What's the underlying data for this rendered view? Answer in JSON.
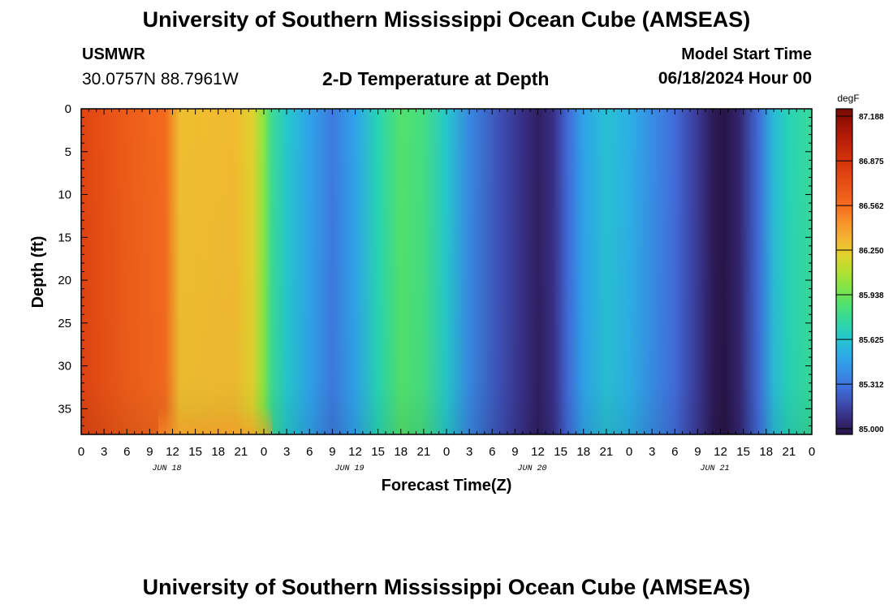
{
  "header": {
    "title": "University of Southern Mississippi Ocean Cube (AMSEAS)",
    "station_name": "USMWR",
    "station_coords": "30.0757N  88.7961W",
    "plot_title": "2-D Temperature at Depth",
    "model_start_label": "Model Start Time",
    "model_start_value": "06/18/2024 Hour 00"
  },
  "footer": {
    "title": "University of Southern Mississippi Ocean Cube (AMSEAS)"
  },
  "chart_data": {
    "type": "heatmap",
    "xlabel": "Forecast Time(Z)",
    "ylabel": "Depth (ft)",
    "x_hours_range": [
      0,
      96
    ],
    "ylim": [
      0,
      38
    ],
    "y_ticks": [
      "0",
      "5",
      "10",
      "15",
      "20",
      "25",
      "30",
      "35"
    ],
    "x_tick_labels": [
      "0",
      "3",
      "6",
      "9",
      "12",
      "15",
      "18",
      "21",
      "0",
      "3",
      "6",
      "9",
      "12",
      "15",
      "18",
      "21",
      "0",
      "3",
      "6",
      "9",
      "12",
      "15",
      "18",
      "21",
      "0",
      "3",
      "6",
      "9",
      "12",
      "15",
      "18",
      "21",
      "0"
    ],
    "date_labels": [
      "JUN 18",
      "JUN 19",
      "JUN 20",
      "JUN 21"
    ],
    "colorbar": {
      "unit": "degF",
      "min": 85.0,
      "max": 87.188,
      "ticks": [
        "87.188",
        "86.875",
        "86.562",
        "86.250",
        "85.938",
        "85.625",
        "85.312",
        "85.000"
      ]
    },
    "surface_temperature_by_hour": [
      {
        "hour": 0,
        "value": 86.75
      },
      {
        "hour": 6,
        "value": 86.62
      },
      {
        "hour": 11,
        "value": 86.55
      },
      {
        "hour": 13,
        "value": 86.28
      },
      {
        "hour": 20,
        "value": 86.3
      },
      {
        "hour": 22.5,
        "value": 86.2
      },
      {
        "hour": 24,
        "value": 86.0
      },
      {
        "hour": 25,
        "value": 85.8
      },
      {
        "hour": 27,
        "value": 85.65
      },
      {
        "hour": 30,
        "value": 85.5
      },
      {
        "hour": 33,
        "value": 85.35
      },
      {
        "hour": 36,
        "value": 85.5
      },
      {
        "hour": 39,
        "value": 85.72
      },
      {
        "hour": 42,
        "value": 85.88
      },
      {
        "hour": 45,
        "value": 85.83
      },
      {
        "hour": 48,
        "value": 85.65
      },
      {
        "hour": 51,
        "value": 85.4
      },
      {
        "hour": 55,
        "value": 85.22
      },
      {
        "hour": 58,
        "value": 85.12
      },
      {
        "hour": 60,
        "value": 85.05
      },
      {
        "hour": 62,
        "value": 85.12
      },
      {
        "hour": 64,
        "value": 85.3
      },
      {
        "hour": 66,
        "value": 85.5
      },
      {
        "hour": 69,
        "value": 85.62
      },
      {
        "hour": 72,
        "value": 85.55
      },
      {
        "hour": 75,
        "value": 85.42
      },
      {
        "hour": 78,
        "value": 85.3
      },
      {
        "hour": 81,
        "value": 85.15
      },
      {
        "hour": 83,
        "value": 85.03
      },
      {
        "hour": 84.5,
        "value": 85.0
      },
      {
        "hour": 86.5,
        "value": 85.08
      },
      {
        "hour": 89,
        "value": 85.3
      },
      {
        "hour": 91,
        "value": 85.6
      },
      {
        "hour": 93,
        "value": 85.72
      },
      {
        "hour": 96,
        "value": 85.78
      }
    ]
  }
}
